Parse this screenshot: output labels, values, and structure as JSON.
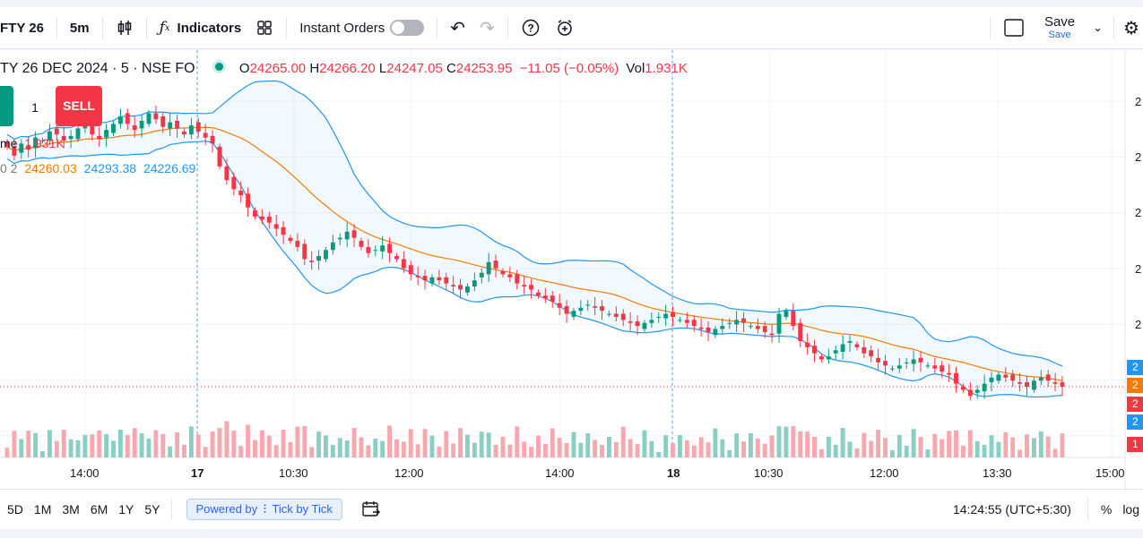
{
  "toolbar": {
    "symbol": "FTY 26",
    "interval": "5m",
    "indicators_label": "Indicators",
    "instant_orders_label": "Instant Orders",
    "save_label": "Save",
    "save_sub": "Save"
  },
  "legend": {
    "title": "TY 26 DEC 2024 · 5 · NSE FO",
    "open_label": "O",
    "open": "24265.00",
    "high_label": "H",
    "high": "24266.20",
    "low_label": "L",
    "low": "24247.05",
    "close_label": "C",
    "close": "24253.95",
    "change": "−11.05 (−0.05%)",
    "vol_label": "Vol",
    "vol": "1.931K",
    "volume_name": "me",
    "volume_value": "1.931K",
    "bb_params": "0 2",
    "bb_basis": "24260.03",
    "bb_upper": "24293.38",
    "bb_lower": "24226.69"
  },
  "order": {
    "qty": "1",
    "sell_label": "SELL"
  },
  "price_axis_tags": [
    "2",
    "2",
    "2",
    "2",
    "1"
  ],
  "price_axis_labels": [
    "2",
    "2",
    "2",
    "2",
    "2"
  ],
  "time_axis": [
    "14:00",
    "17",
    "10:30",
    "12:00",
    "14:00",
    "18",
    "10:30",
    "12:00",
    "13:30",
    "15:00"
  ],
  "bottombar": {
    "ranges": [
      "5D",
      "1M",
      "3M",
      "6M",
      "1Y",
      "5Y"
    ],
    "powered_by": "Powered by",
    "powered_brand": "Tick by Tick",
    "clock": "14:24:55 (UTC+5:30)",
    "percent": "%",
    "log": "log"
  },
  "colors": {
    "up": "#089981",
    "down": "#f23645",
    "basis": "#f57c00",
    "band": "#2196f3",
    "vol_up": "#89cfc3",
    "vol_down": "#f7a8af"
  },
  "chart_data": {
    "type": "candlestick",
    "close": [
      24268,
      24262,
      24270,
      24266,
      24274,
      24272,
      24278,
      24276,
      24272,
      24275,
      24280,
      24282,
      24276,
      24273,
      24279,
      24283,
      24288,
      24283,
      24279,
      24285,
      24290,
      24286,
      24281,
      24284,
      24280,
      24276,
      24282,
      24278,
      24274,
      24270,
      24255,
      24246,
      24240,
      24236,
      24228,
      24222,
      24220,
      24218,
      24214,
      24210,
      24206,
      24202,
      24194,
      24192,
      24196,
      24200,
      24205,
      24208,
      24212,
      24208,
      24202,
      24198,
      24200,
      24203,
      24198,
      24194,
      24188,
      24184,
      24182,
      24180,
      24182,
      24180,
      24178,
      24176,
      24174,
      24176,
      24180,
      24185,
      24192,
      24188,
      24184,
      24182,
      24178,
      24176,
      24174,
      24170,
      24168,
      24166,
      24162,
      24158,
      24160,
      24162,
      24164,
      24162,
      24160,
      24158,
      24156,
      24154,
      24152,
      24150,
      24152,
      24154,
      24156,
      24158,
      24156,
      24154,
      24152,
      24150,
      24148,
      24146,
      24148,
      24150,
      24152,
      24154,
      24152,
      24150,
      24148,
      24146,
      24144,
      24158,
      24160,
      24150,
      24140,
      24136,
      24132,
      24128,
      24130,
      24134,
      24138,
      24140,
      24136,
      24132,
      24130,
      24126,
      24124,
      24122,
      24124,
      24126,
      24128,
      24126,
      24124,
      24122,
      24120,
      24118,
      24112,
      24108,
      24104,
      24108,
      24112,
      24116,
      24118,
      24116,
      24114,
      24112,
      24110,
      24114,
      24116,
      24114,
      24112,
      24110
    ],
    "ohlc_last": {
      "open": 24265.0,
      "high": 24266.2,
      "low": 24247.05,
      "close": 24253.95
    },
    "bollinger": {
      "basis": 24260.03,
      "upper": 24293.38,
      "lower": 24226.69
    },
    "volume_last": "1.931K"
  }
}
